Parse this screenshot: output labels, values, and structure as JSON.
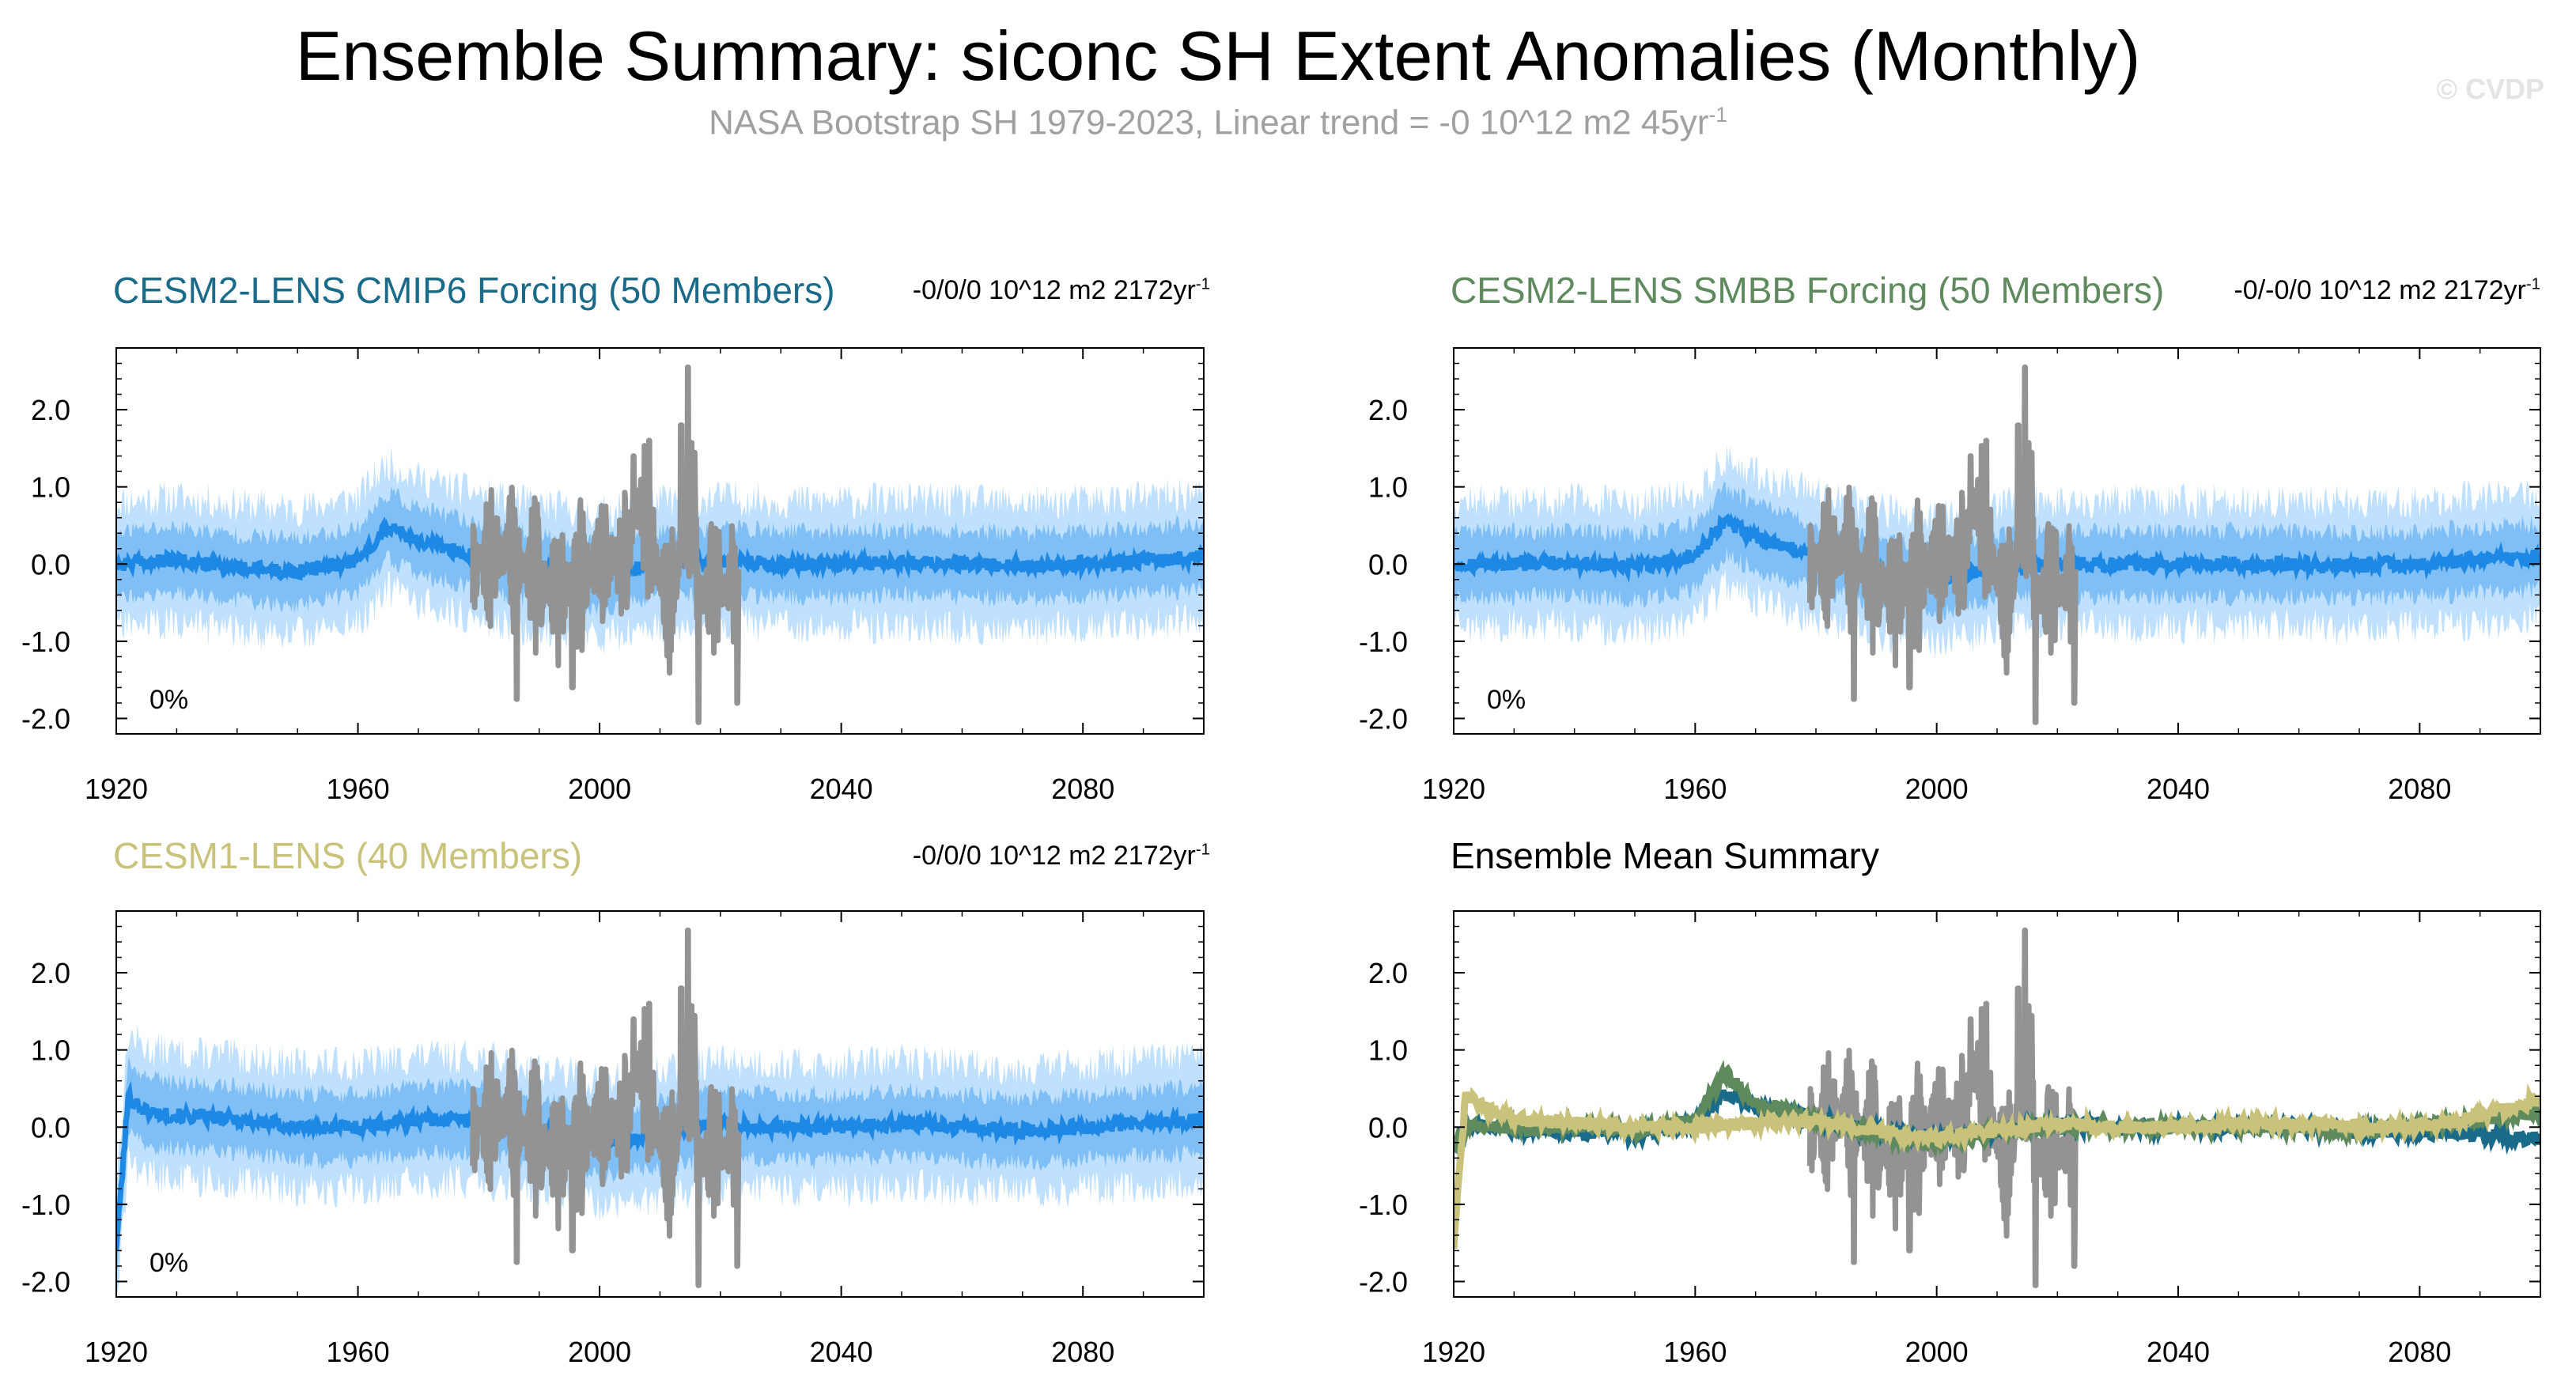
{
  "header": {
    "title": "Ensemble Summary: siconc SH Extent Anomalies (Monthly)",
    "subtitle_text": "NASA Bootstrap SH 1979-2023, Linear trend = -0 10^12 m2 45yr",
    "subtitle_sup": "-1",
    "watermark": "© CVDP"
  },
  "colors": {
    "cesm2_cmip6": "#1a6b8a",
    "cesm2_smbb": "#5e8a5e",
    "cesm1": "#c9c27a",
    "envelope_light": "#bfe0ff",
    "envelope_mid": "#7fbff5",
    "ensemble_mean": "#1e88e5",
    "observations": "#939393"
  },
  "chart_data": [
    {
      "id": "cesm2-cmip6",
      "type": "area",
      "title": "CESM2-LENS CMIP6 Forcing (50 Members)",
      "trend_text": "-0/0/0 10^12 m2 2172yr",
      "trend_sup": "-1",
      "percent_label": "0%",
      "x_range": [
        1920,
        2100
      ],
      "ylim": [
        -2.2,
        2.8
      ],
      "x_ticks": [
        "1920",
        "1960",
        "2000",
        "2040",
        "2080"
      ],
      "y_ticks": [
        "2.0",
        "1.0",
        "0.0",
        "-1.0",
        "-2.0"
      ],
      "series": [
        {
          "name": "ensemble-range",
          "style": "shaded-envelope",
          "spread_10_90": 0.55,
          "spread_min_max": 1.05
        },
        {
          "name": "ensemble-mean",
          "x": [
            1920,
            1930,
            1940,
            1950,
            1960,
            1965,
            1970,
            1980,
            1990,
            2000,
            2010,
            2020,
            2030,
            2040,
            2050,
            2060,
            2070,
            2080,
            2090,
            2100
          ],
          "values": [
            0.0,
            0.05,
            -0.05,
            -0.1,
            0.05,
            0.5,
            0.3,
            0.1,
            -0.05,
            -0.15,
            0.0,
            0.05,
            0.0,
            0.0,
            0.02,
            0.0,
            -0.02,
            0.0,
            0.05,
            0.1
          ]
        },
        {
          "name": "observations",
          "x_range": [
            1979,
            2023
          ]
        }
      ]
    },
    {
      "id": "cesm2-smbb",
      "type": "area",
      "title": "CESM2-LENS SMBB Forcing (50 Members)",
      "trend_text": "-0/-0/0 10^12 m2 2172yr",
      "trend_sup": "-1",
      "percent_label": "0%",
      "x_range": [
        1920,
        2100
      ],
      "ylim": [
        -2.2,
        2.8
      ],
      "x_ticks": [
        "1920",
        "1960",
        "2000",
        "2040",
        "2080"
      ],
      "y_ticks": [
        "2.0",
        "1.0",
        "0.0",
        "-1.0",
        "-2.0"
      ],
      "series": [
        {
          "name": "ensemble-range",
          "style": "shaded-envelope",
          "spread_10_90": 0.55,
          "spread_min_max": 1.05
        },
        {
          "name": "ensemble-mean",
          "x": [
            1920,
            1930,
            1940,
            1950,
            1960,
            1965,
            1970,
            1980,
            1990,
            2000,
            2010,
            2020,
            2030,
            2040,
            2050,
            2060,
            2070,
            2080,
            2090,
            2100
          ],
          "values": [
            0.0,
            0.0,
            0.02,
            -0.05,
            0.1,
            0.55,
            0.35,
            0.1,
            -0.1,
            -0.2,
            -0.05,
            0.0,
            0.0,
            0.0,
            0.0,
            0.0,
            -0.02,
            0.0,
            0.05,
            0.1
          ]
        },
        {
          "name": "observations",
          "x_range": [
            1979,
            2023
          ]
        }
      ]
    },
    {
      "id": "cesm1",
      "type": "area",
      "title": "CESM1-LENS (40 Members)",
      "trend_text": "-0/0/0 10^12 m2 2172yr",
      "trend_sup": "-1",
      "percent_label": "0%",
      "x_range": [
        1920,
        2100
      ],
      "ylim": [
        -2.2,
        2.8
      ],
      "x_ticks": [
        "1920",
        "1960",
        "2000",
        "2040",
        "2080"
      ],
      "y_ticks": [
        "2.0",
        "1.0",
        "0.0",
        "-1.0",
        "-2.0"
      ],
      "series": [
        {
          "name": "ensemble-range",
          "style": "shaded-envelope",
          "spread_10_90": 0.55,
          "spread_min_max": 1.05
        },
        {
          "name": "ensemble-mean",
          "x": [
            1920,
            1921,
            1922,
            1925,
            1930,
            1940,
            1950,
            1960,
            1970,
            1980,
            1990,
            2000,
            2010,
            2020,
            2030,
            2040,
            2050,
            2060,
            2070,
            2080,
            2090,
            2100
          ],
          "values": [
            -1.55,
            -0.6,
            0.4,
            0.2,
            0.15,
            0.1,
            0.0,
            0.0,
            0.1,
            0.1,
            -0.05,
            -0.2,
            -0.1,
            0.05,
            0.0,
            0.0,
            0.05,
            0.0,
            -0.05,
            0.0,
            0.05,
            0.1
          ]
        },
        {
          "name": "observations",
          "x_range": [
            1979,
            2023
          ]
        }
      ]
    },
    {
      "id": "ensemble-mean-summary",
      "type": "line",
      "title": "Ensemble Mean Summary",
      "x_range": [
        1920,
        2100
      ],
      "ylim": [
        -2.2,
        2.8
      ],
      "x_ticks": [
        "1920",
        "1960",
        "2000",
        "2040",
        "2080"
      ],
      "y_ticks": [
        "2.0",
        "1.0",
        "0.0",
        "-1.0",
        "-2.0"
      ],
      "series": [
        {
          "name": "observations",
          "x_range": [
            1979,
            2023
          ]
        },
        {
          "name": "CESM2-LENS CMIP6 Forcing",
          "x": [
            1920,
            1922,
            1930,
            1940,
            1950,
            1960,
            1965,
            1970,
            1980,
            1990,
            2000,
            2010,
            2020,
            2030,
            2040,
            2050,
            2060,
            2070,
            2080,
            2090,
            2100
          ],
          "values": [
            -0.3,
            0.0,
            0.0,
            -0.05,
            -0.1,
            0.05,
            0.45,
            0.25,
            0.1,
            -0.05,
            -0.15,
            -0.05,
            0.05,
            0.0,
            0.0,
            0.02,
            0.0,
            -0.05,
            -0.05,
            -0.1,
            -0.15
          ]
        },
        {
          "name": "CESM2-LENS SMBB Forcing",
          "x": [
            1920,
            1922,
            1930,
            1940,
            1950,
            1960,
            1965,
            1970,
            1980,
            1990,
            2000,
            2010,
            2020,
            2030,
            2040,
            2050,
            2060,
            2070,
            2080,
            2090,
            2100
          ],
          "values": [
            -0.3,
            0.0,
            0.0,
            0.0,
            -0.05,
            0.1,
            0.7,
            0.3,
            0.1,
            -0.1,
            -0.2,
            -0.05,
            0.0,
            0.0,
            0.0,
            0.0,
            0.0,
            -0.05,
            0.0,
            0.1,
            0.2
          ]
        },
        {
          "name": "CESM1-LENS",
          "x": [
            1920,
            1921,
            1922,
            1925,
            1930,
            1940,
            1950,
            1960,
            1970,
            1980,
            1990,
            2000,
            2010,
            2020,
            2030,
            2040,
            2050,
            2060,
            2070,
            2080,
            2090,
            2100
          ],
          "values": [
            -1.55,
            -0.5,
            0.4,
            0.25,
            0.1,
            0.05,
            0.0,
            0.0,
            0.05,
            0.1,
            -0.05,
            -0.15,
            -0.05,
            0.05,
            0.0,
            0.0,
            0.05,
            0.05,
            0.0,
            0.0,
            0.15,
            0.35
          ]
        }
      ]
    }
  ]
}
